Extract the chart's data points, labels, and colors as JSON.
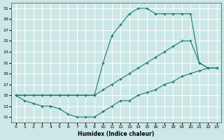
{
  "xlabel": "Humidex (Indice chaleur)",
  "background_color": "#cce8e6",
  "grid_color": "#ffffff",
  "line_color": "#1a7a6e",
  "xlim": [
    -0.5,
    23.5
  ],
  "ylim": [
    10,
    32
  ],
  "xticks": [
    0,
    1,
    2,
    3,
    4,
    5,
    6,
    7,
    8,
    9,
    10,
    11,
    12,
    13,
    14,
    15,
    16,
    17,
    18,
    19,
    20,
    21,
    22,
    23
  ],
  "yticks": [
    11,
    13,
    15,
    17,
    19,
    21,
    23,
    25,
    27,
    29,
    31
  ],
  "curve_max_x": [
    0,
    1,
    2,
    3,
    4,
    5,
    6,
    7,
    8,
    9,
    10,
    11,
    12,
    13,
    14,
    15,
    16,
    17,
    18,
    19,
    20,
    21,
    22,
    23
  ],
  "curve_max_y": [
    15,
    15,
    15,
    15,
    15,
    15,
    15,
    15,
    15,
    15,
    21,
    26,
    28,
    30,
    31,
    31,
    30,
    30,
    30,
    30,
    30,
    21,
    20,
    20
  ],
  "curve_mid_x": [
    0,
    1,
    2,
    3,
    4,
    5,
    6,
    7,
    8,
    9,
    10,
    11,
    12,
    13,
    14,
    15,
    16,
    17,
    18,
    19,
    20,
    21,
    22,
    23
  ],
  "curve_mid_y": [
    15,
    15,
    15,
    15,
    15,
    15,
    15,
    15,
    15,
    15,
    16,
    17,
    18,
    19,
    20,
    21,
    22,
    23,
    24,
    25,
    25,
    21,
    20,
    20
  ],
  "curve_min_x": [
    0,
    1,
    2,
    3,
    4,
    5,
    6,
    7,
    8,
    9,
    10,
    11,
    12,
    13,
    14,
    15,
    16,
    17,
    18,
    19,
    20,
    21,
    22,
    23
  ],
  "curve_min_y": [
    15,
    14,
    13.5,
    13,
    13,
    12.5,
    11.5,
    11,
    11,
    11,
    12,
    13,
    14,
    14,
    15,
    15.5,
    16,
    17,
    17.5,
    18.5,
    19,
    19.5,
    20,
    20
  ]
}
